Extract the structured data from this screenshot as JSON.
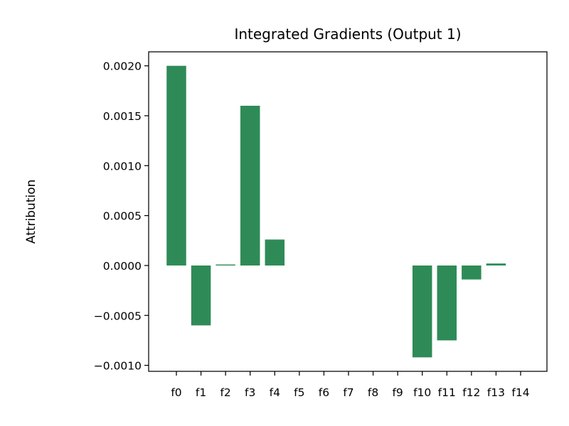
{
  "chart_data": {
    "type": "bar",
    "title": "Integrated Gradients (Output 1)",
    "xlabel": "",
    "ylabel": "Attribution",
    "categories": [
      "f0",
      "f1",
      "f2",
      "f3",
      "f4",
      "f5",
      "f6",
      "f7",
      "f8",
      "f9",
      "f10",
      "f11",
      "f12",
      "f13",
      "f14"
    ],
    "values": [
      0.002,
      -0.0006,
      1e-05,
      0.0016,
      0.00026,
      0,
      0,
      0,
      0,
      0,
      -0.00092,
      -0.00075,
      -0.00014,
      2e-05,
      0
    ],
    "ylim": [
      -0.00106,
      0.00214
    ],
    "yticks": [
      -0.001,
      -0.0005,
      0.0,
      0.0005,
      0.001,
      0.0015,
      0.002
    ],
    "ytick_labels": [
      "−0.0010",
      "−0.0005",
      "0.0000",
      "0.0005",
      "0.0010",
      "0.0015",
      "0.0020"
    ],
    "bar_color": "#2e8b57",
    "grid": false,
    "legend": "none"
  }
}
